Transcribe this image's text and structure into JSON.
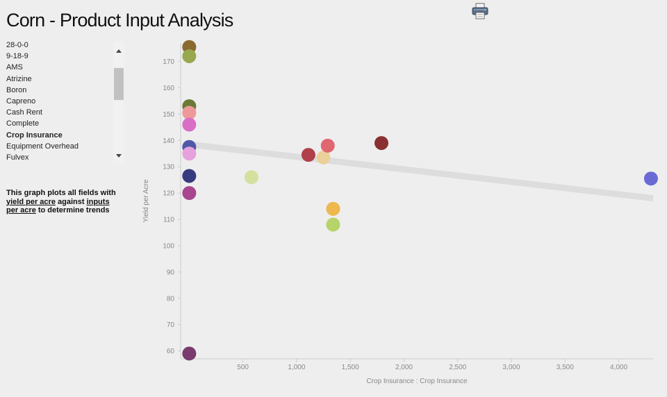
{
  "header": {
    "title": "Corn - Product Input Analysis",
    "print_icon": "printer-icon"
  },
  "product_list": {
    "items": [
      "28-0-0",
      "9-18-9",
      "AMS",
      "Atrizine",
      "Boron",
      "Capreno",
      "Cash Rent",
      "Complete",
      "Crop Insurance",
      "Equipment Overhead",
      "Fulvex"
    ],
    "selected": "Crop Insurance",
    "scroll_up_icon": "triangle-up-icon",
    "scroll_down_icon": "triangle-down-icon"
  },
  "description": {
    "prefix": "This graph plots all fields with ",
    "link1": "yield per acre",
    "middle": " against ",
    "link2": "inputs per acre",
    "suffix": " to determine trends"
  },
  "chart_data": {
    "type": "scatter",
    "xlabel": "Crop Insurance : Crop Insurance",
    "ylabel": "Yield per Acre",
    "xlim": [
      -80,
      4320
    ],
    "ylim": [
      57,
      177
    ],
    "x_ticks": [
      500,
      1000,
      1500,
      2000,
      2500,
      3000,
      3500,
      4000
    ],
    "x_tick_labels": [
      "500",
      "1,000",
      "1,500",
      "2,000",
      "2,500",
      "3,000",
      "3,500",
      "4,000"
    ],
    "y_ticks": [
      60,
      70,
      80,
      90,
      100,
      110,
      120,
      130,
      140,
      150,
      160,
      170
    ],
    "grid": false,
    "trend_line": {
      "x": [
        0,
        4320
      ],
      "y": [
        138.5,
        118
      ],
      "color": "#dddddd"
    },
    "points": [
      {
        "x": 0,
        "y": 175.5,
        "color": "#8a6a2e"
      },
      {
        "x": 0,
        "y": 172,
        "color": "#98a84e"
      },
      {
        "x": 0,
        "y": 153,
        "color": "#6a7a35"
      },
      {
        "x": 0,
        "y": 150.5,
        "color": "#ee9999"
      },
      {
        "x": 0,
        "y": 146,
        "color": "#d96ec6"
      },
      {
        "x": 0,
        "y": 137.5,
        "color": "#5058a8"
      },
      {
        "x": 0,
        "y": 135,
        "color": "#e6a2dc"
      },
      {
        "x": 0,
        "y": 126.5,
        "color": "#363a7e"
      },
      {
        "x": 0,
        "y": 120,
        "color": "#a8468f"
      },
      {
        "x": 0,
        "y": 59,
        "color": "#7a3a6e"
      },
      {
        "x": 580,
        "y": 126,
        "color": "#d4e0a0"
      },
      {
        "x": 1110,
        "y": 134.5,
        "color": "#b0404a"
      },
      {
        "x": 1250,
        "y": 133.5,
        "color": "#ecd09a"
      },
      {
        "x": 1290,
        "y": 138,
        "color": "#e06670"
      },
      {
        "x": 1340,
        "y": 114,
        "color": "#edb84e"
      },
      {
        "x": 1340,
        "y": 108,
        "color": "#b6d46a"
      },
      {
        "x": 1790,
        "y": 139,
        "color": "#8a3030"
      },
      {
        "x": 4300,
        "y": 125.5,
        "color": "#6a6ad4"
      }
    ]
  }
}
